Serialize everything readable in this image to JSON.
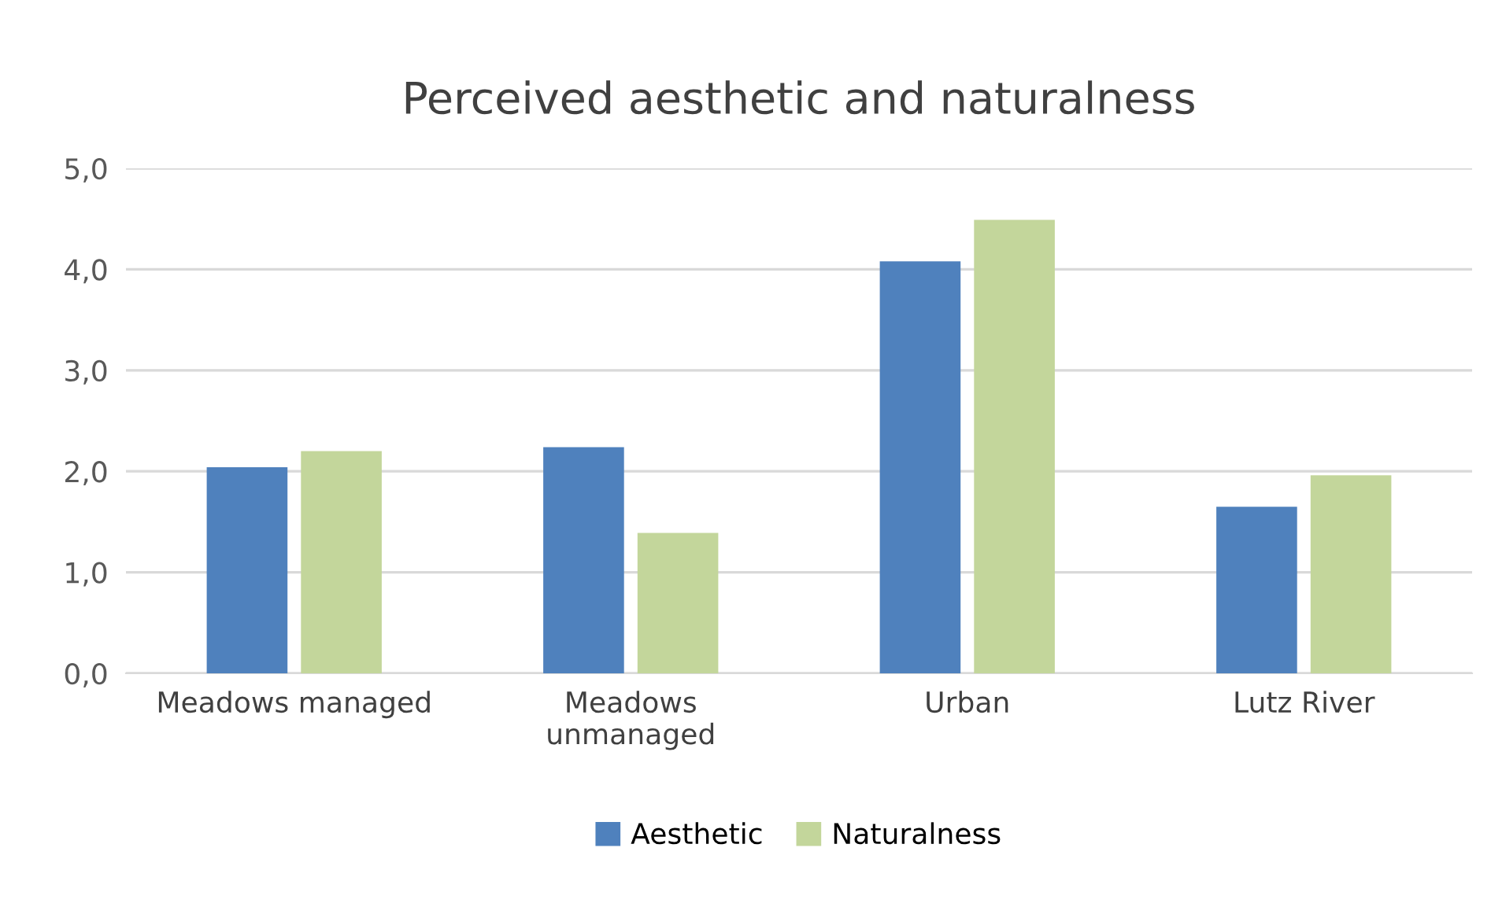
{
  "chart_data": {
    "type": "bar",
    "title": "Perceived aesthetic and naturalness",
    "categories": [
      "Meadows managed",
      "Meadows\nunmanaged",
      "Urban",
      "Lutz River"
    ],
    "series": [
      {
        "name": "Aesthetic",
        "color": "#4f81bd",
        "values": [
          2.04,
          2.24,
          4.08,
          1.65
        ]
      },
      {
        "name": "Naturalness",
        "color": "#c3d69b",
        "values": [
          2.2,
          1.39,
          4.49,
          1.96
        ]
      }
    ],
    "ylim": [
      0,
      5
    ],
    "yticks": [
      {
        "value": 0,
        "label": "0,0"
      },
      {
        "value": 1,
        "label": "1,0"
      },
      {
        "value": 2,
        "label": "2,0"
      },
      {
        "value": 3,
        "label": "3,0"
      },
      {
        "value": 4,
        "label": "4,0"
      },
      {
        "value": 5,
        "label": "5,0"
      }
    ],
    "grid": "y",
    "legend": "bottom"
  }
}
